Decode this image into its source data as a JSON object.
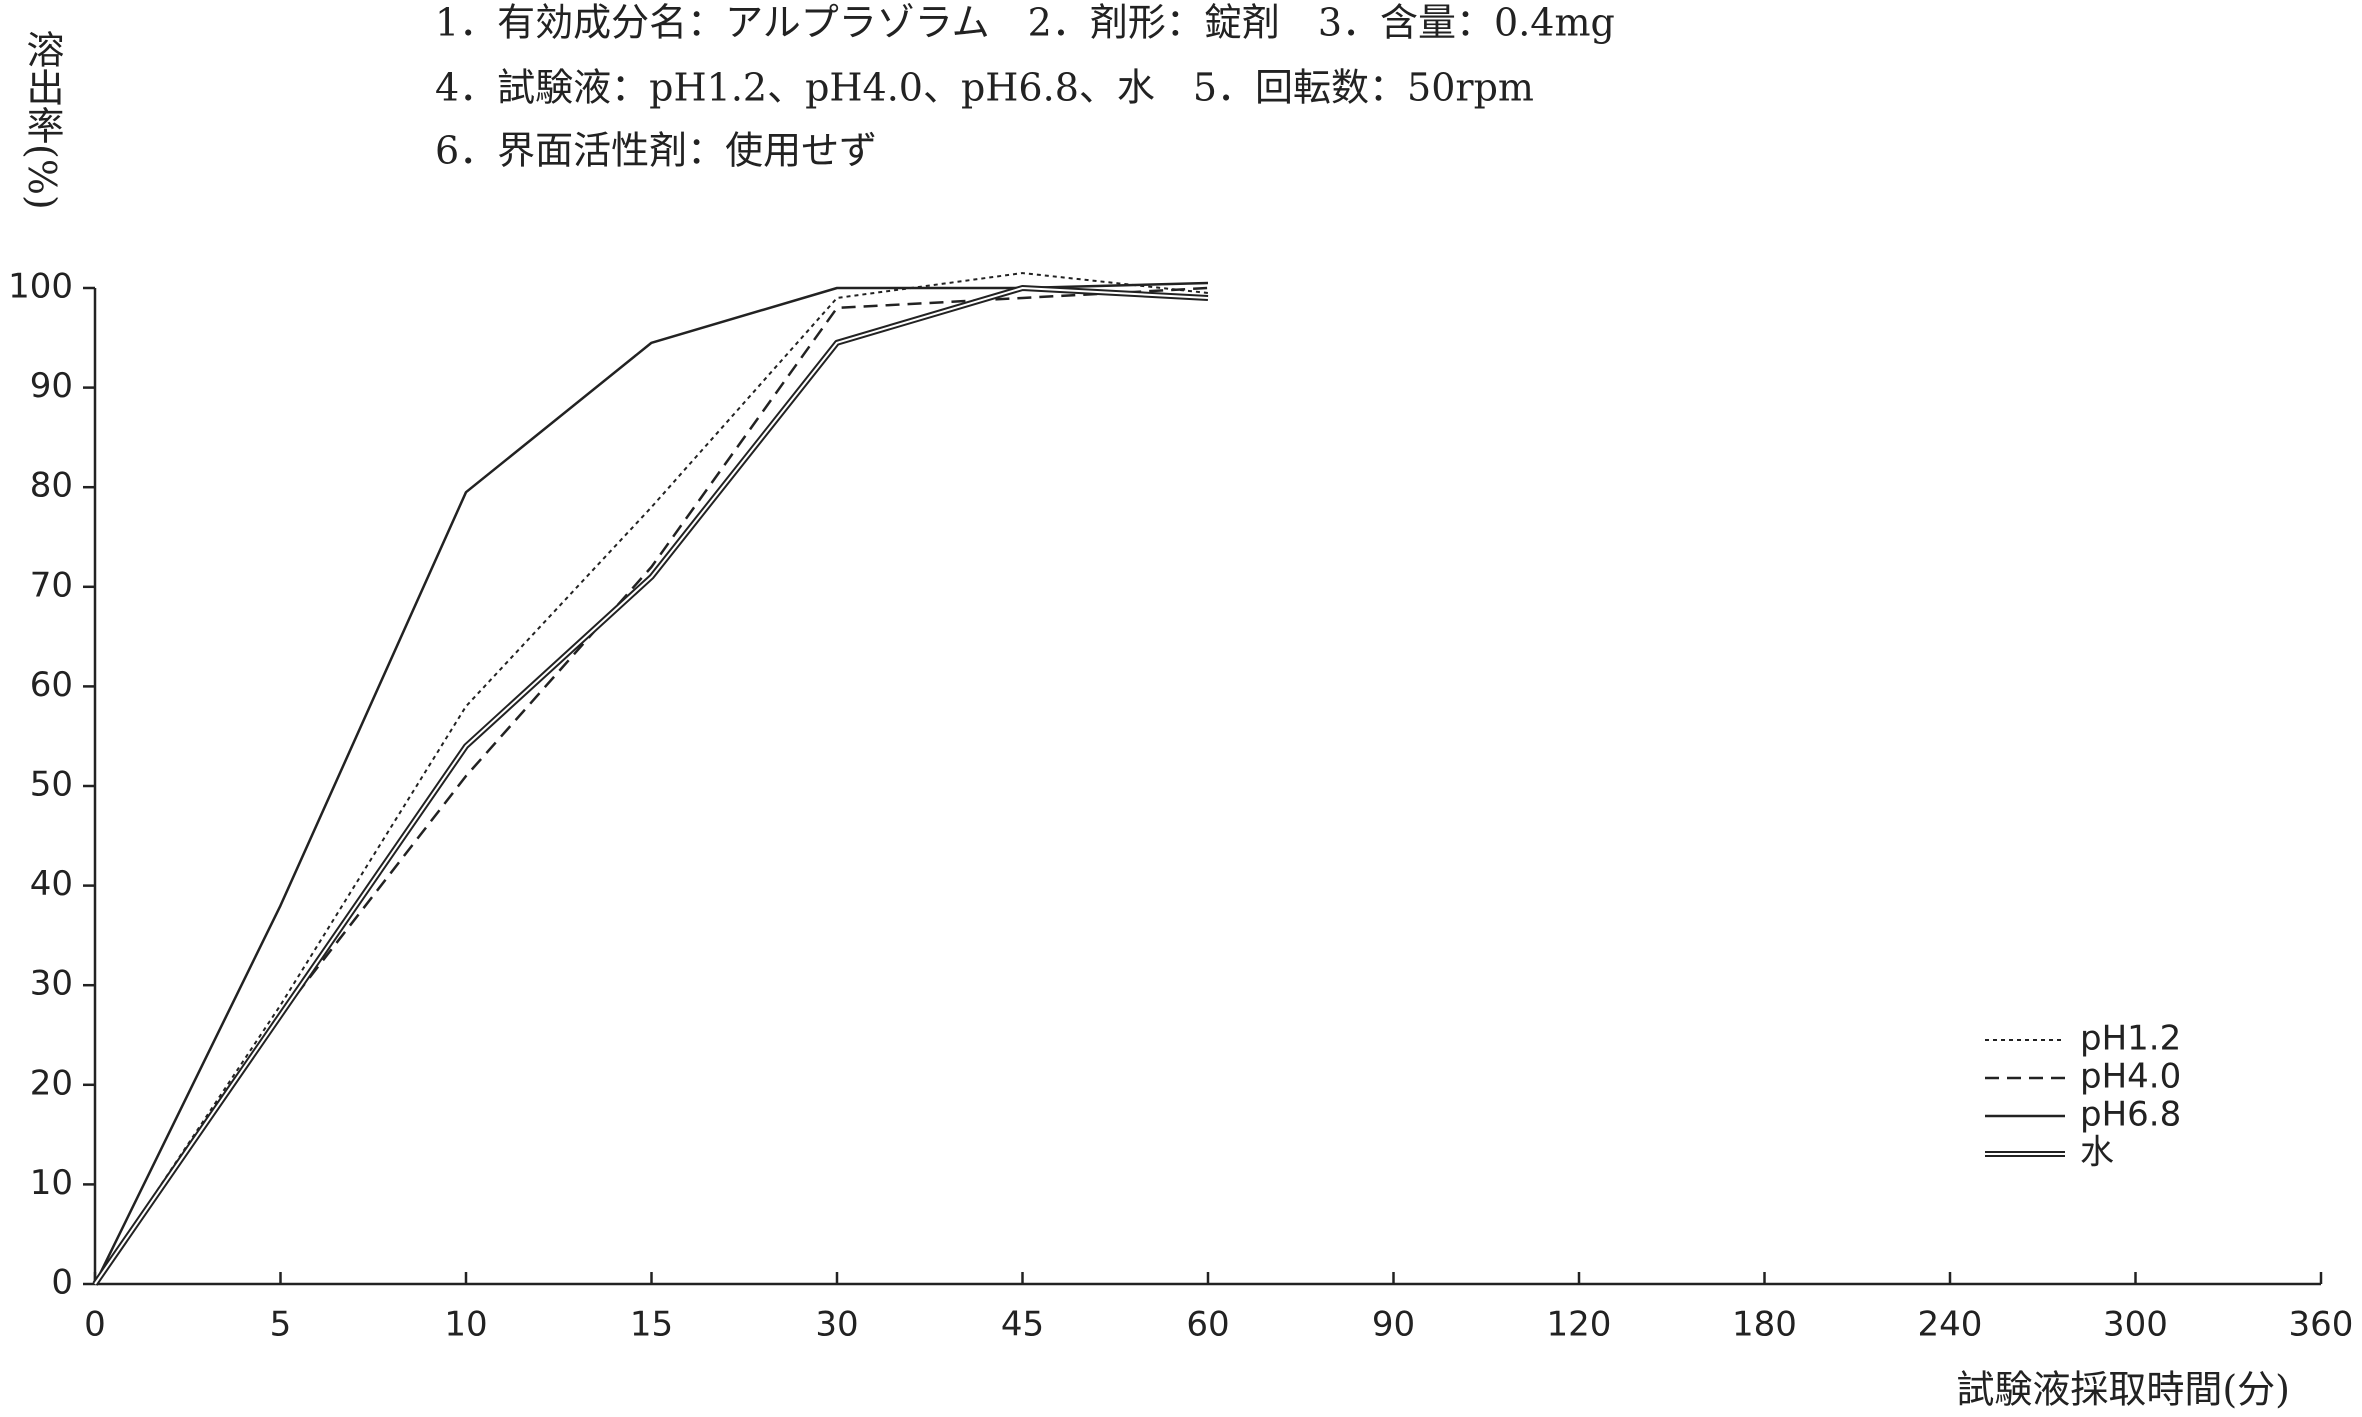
{
  "chart_data": {
    "type": "line",
    "title_lines": [
      "1．有効成分名：アルプラゾラム　2．剤形：錠剤　3．含量：0.4mg",
      "4．試験液：pH1.2、pH4.0、pH6.8、水　5．回転数：50rpm",
      "6．界面活性剤：使用せず"
    ],
    "y_label": "溶出率(%)",
    "x_label": "試験液採取時間(分)",
    "categories": [
      0,
      5,
      10,
      15,
      30,
      45,
      60,
      90,
      120,
      180,
      240,
      300,
      360
    ],
    "ylim": [
      0,
      100
    ],
    "yticks": [
      0,
      10,
      20,
      30,
      40,
      50,
      60,
      70,
      80,
      90,
      100
    ],
    "grid": false,
    "legend": "lower right",
    "series": [
      {
        "name": "pH1.2",
        "color": "#222222",
        "style": "dotted",
        "values": [
          0,
          28,
          58,
          78,
          99,
          101.5,
          99.5,
          null,
          null,
          null,
          null,
          null,
          null
        ]
      },
      {
        "name": "pH4.0",
        "color": "#222222",
        "style": "dashed",
        "values": [
          0,
          27,
          51,
          72,
          98,
          99,
          100,
          null,
          null,
          null,
          null,
          null,
          null
        ]
      },
      {
        "name": "pH6.8",
        "color": "#222222",
        "style": "solid",
        "values": [
          0,
          38,
          79.5,
          94.5,
          100,
          100,
          100.5,
          null,
          null,
          null,
          null,
          null,
          null
        ]
      },
      {
        "name": "水",
        "color": "#222222",
        "style": "double",
        "values": [
          0,
          27,
          54,
          71,
          94.5,
          100,
          99,
          null,
          null,
          null,
          null,
          null,
          null
        ]
      }
    ]
  }
}
